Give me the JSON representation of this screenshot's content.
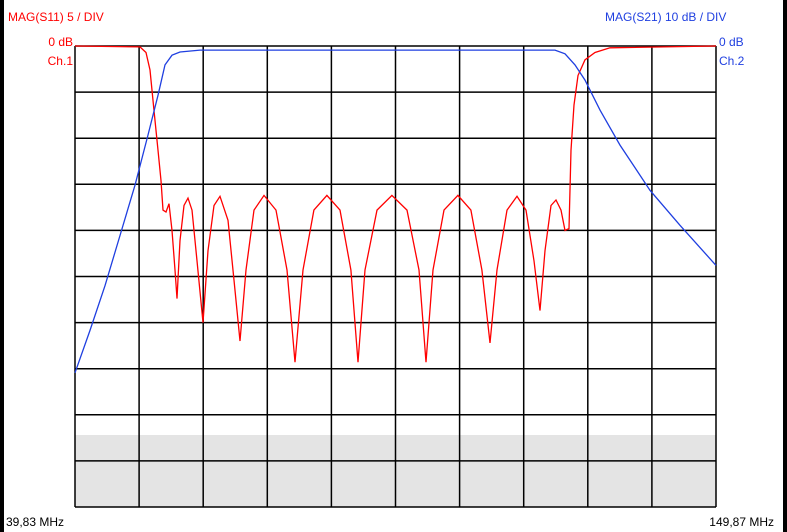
{
  "chart_data": {
    "type": "line",
    "y_label": "MAG(S11) 5  / DIV",
    "y2_label": "MAG(S21) 10 dB / DIV",
    "xlim": [
      39.83,
      149.87
    ],
    "xticks": [
      {
        "value": 39.83,
        "label": "39,83 MHz"
      },
      {
        "value": 149.87,
        "label": "149,87 MHz"
      }
    ],
    "ylim": [
      -50,
      0
    ],
    "yticks": [
      {
        "value": 0,
        "label": "0 dB"
      }
    ],
    "y2lim": [
      -100,
      0
    ],
    "y2ticks": [
      {
        "value": 0,
        "label": "0 dB"
      }
    ],
    "grid": true,
    "series": [
      {
        "name": "Ch.1",
        "color": "#ff0000",
        "x": [
          39.83,
          50.99,
          52.02,
          52.7,
          53.39,
          54.08,
          54.59,
          54.94,
          55.45,
          55.97,
          56.48,
          57.0,
          57.34,
          57.86,
          58.54,
          59.23,
          59.92,
          60.77,
          61.8,
          62.66,
          63.69,
          64.72,
          66.09,
          67.12,
          68.15,
          69.18,
          70.56,
          72.27,
          74.33,
          76.22,
          77.59,
          78.97,
          80.85,
          83.08,
          85.32,
          87.2,
          88.41,
          89.61,
          91.67,
          94.24,
          96.82,
          98.88,
          100.08,
          101.28,
          103.17,
          105.57,
          107.8,
          109.69,
          111.07,
          112.27,
          113.99,
          115.7,
          117.25,
          118.62,
          119.65,
          120.51,
          121.54,
          122.4,
          123.26,
          123.94,
          124.63,
          124.98,
          125.49,
          126.18,
          127.38,
          129.1,
          131.67,
          149.87
        ],
        "values": [
          0,
          -0.1,
          -0.7,
          -2.6,
          -7.0,
          -11.3,
          -14.6,
          -17.8,
          -18.0,
          -17.1,
          -20.0,
          -24.3,
          -27.4,
          -21.1,
          -17.3,
          -16.5,
          -17.8,
          -23.3,
          -30.0,
          -22.2,
          -17.3,
          -16.3,
          -18.9,
          -25.4,
          -32.0,
          -24.3,
          -17.8,
          -16.2,
          -17.8,
          -24.3,
          -34.3,
          -24.3,
          -17.8,
          -16.2,
          -17.8,
          -24.3,
          -34.3,
          -24.3,
          -17.8,
          -16.2,
          -17.8,
          -24.3,
          -34.3,
          -24.3,
          -17.8,
          -16.2,
          -17.8,
          -24.3,
          -32.2,
          -24.3,
          -17.8,
          -16.3,
          -17.8,
          -23.3,
          -28.7,
          -22.2,
          -17.3,
          -16.7,
          -17.8,
          -20.0,
          -19.8,
          -11.3,
          -6.4,
          -3.2,
          -1.5,
          -0.7,
          -0.2,
          0
        ]
      },
      {
        "name": "Ch.2",
        "color": "#1f3fe0",
        "axis": "y2",
        "x": [
          39.83,
          42.4,
          44.98,
          47.55,
          50.13,
          52.36,
          54.08,
          55.28,
          56.48,
          57.86,
          61.29,
          95.62,
          122.23,
          123.94,
          125.66,
          127.38,
          129.95,
          133.39,
          138.54,
          143.69,
          149.87
        ],
        "values": [
          -70.9,
          -61.7,
          -52.0,
          -41.1,
          -30.2,
          -19.3,
          -10.7,
          -4.1,
          -2.0,
          -1.3,
          -0.9,
          -0.9,
          -0.9,
          -1.7,
          -4.1,
          -7.4,
          -13.9,
          -21.5,
          -31.3,
          -38.9,
          -47.6
        ]
      }
    ]
  }
}
